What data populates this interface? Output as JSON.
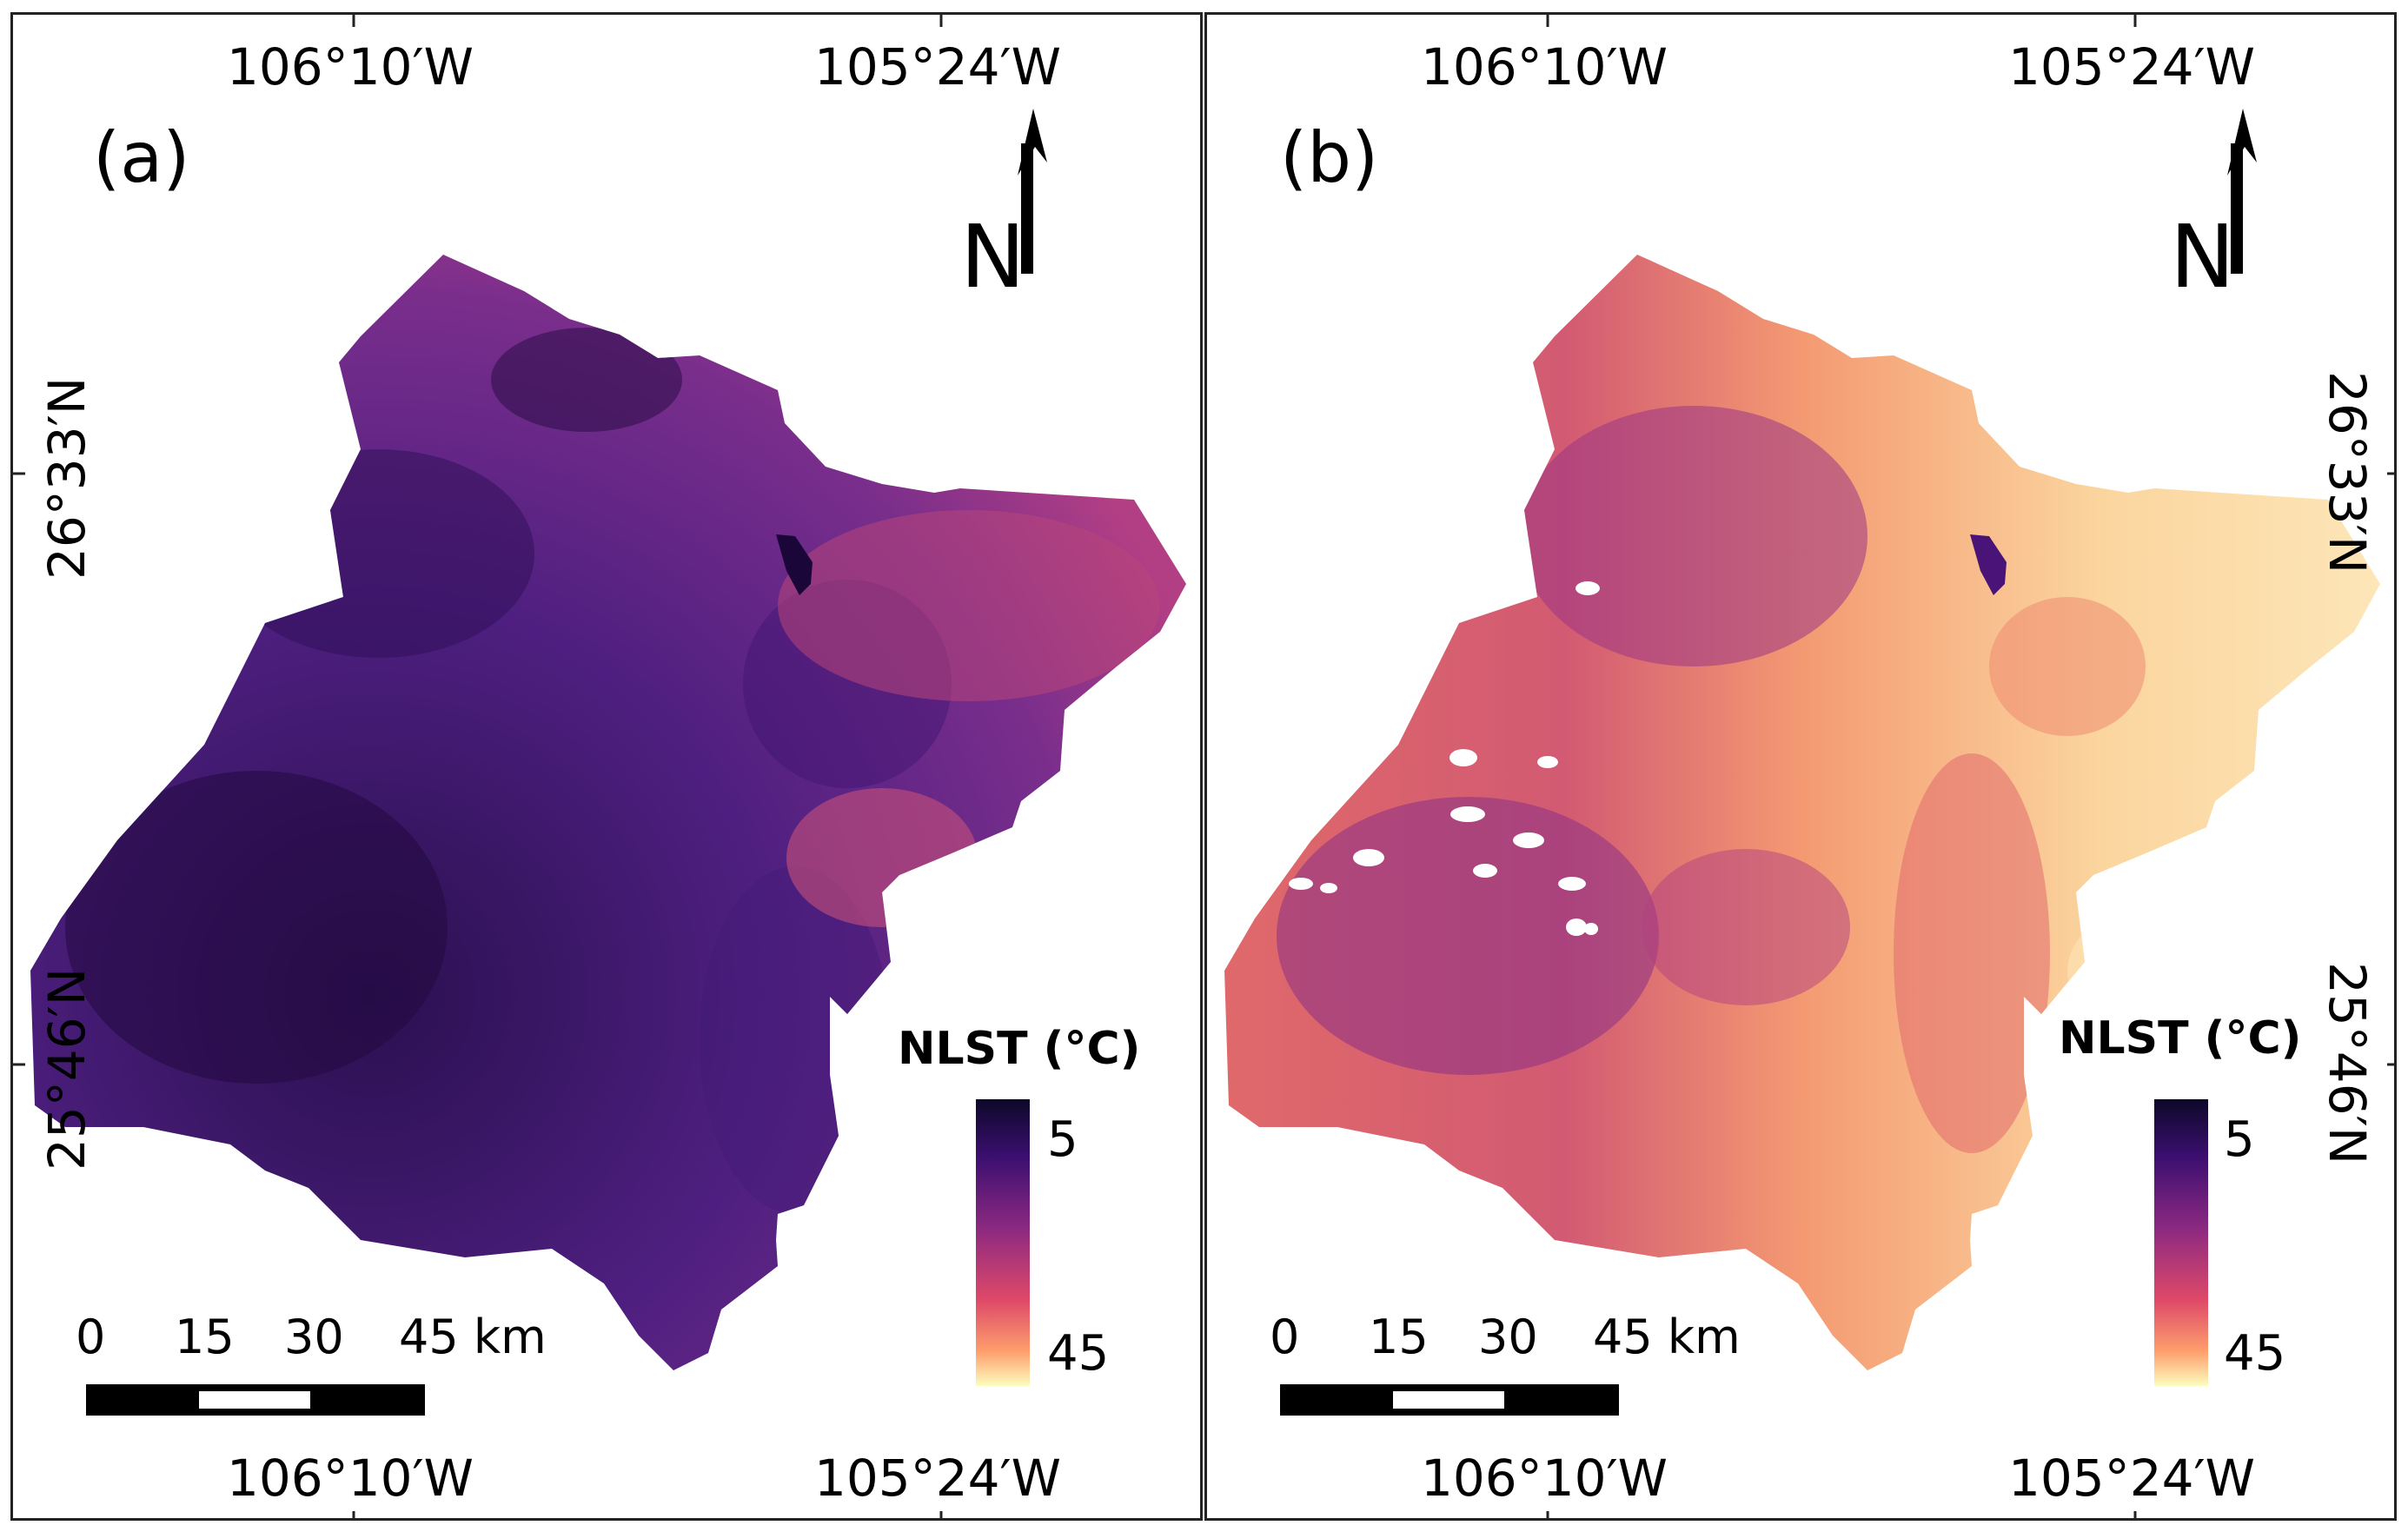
{
  "panels": [
    {
      "label": "(a)",
      "top_coords": [
        "106°10′W",
        "105°24′W"
      ],
      "bottom_coords": [
        "106°10′W",
        "105°24′W"
      ],
      "left_coords": [
        "26°33′N",
        "25°46′N"
      ],
      "north_label": "N",
      "legend": {
        "title": "NLST (°C)",
        "max_label": "5",
        "min_label": "45"
      },
      "scale_bar": {
        "labels": [
          "0",
          "15",
          "30",
          "45 km"
        ]
      },
      "base_color": "#5a2a86"
    },
    {
      "label": "(b)",
      "top_coords": [
        "106°10′W",
        "105°24′W"
      ],
      "bottom_coords": [
        "106°10′W",
        "105°24′W"
      ],
      "right_coords": [
        "26°33′N",
        "25°46′N"
      ],
      "north_label": "N",
      "legend": {
        "title": "NLST (°C)",
        "max_label": "5",
        "min_label": "45"
      },
      "scale_bar": {
        "labels": [
          "0",
          "15",
          "30",
          "45 km"
        ]
      },
      "base_color": "#f0a070"
    }
  ],
  "colorbar": {
    "stops": [
      "#0d0829",
      "#3b0f70",
      "#8c2981",
      "#de4968",
      "#fe9f6d",
      "#fcfdbf"
    ]
  }
}
